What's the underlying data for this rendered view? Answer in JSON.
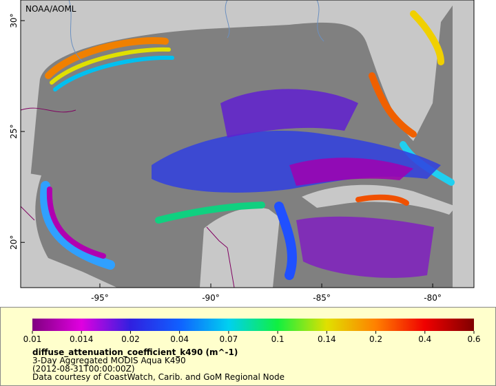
{
  "header": {
    "title": "NOAA/AOML"
  },
  "map": {
    "lon_range": [
      -98.57,
      -78.14
    ],
    "lat_range": [
      17.96,
      30.93
    ],
    "lon_ticks": [
      {
        "value": -95,
        "label": "-95°"
      },
      {
        "value": -90,
        "label": "-90°"
      },
      {
        "value": -85,
        "label": "-85°"
      },
      {
        "value": -80,
        "label": "-80°"
      }
    ],
    "lat_ticks": [
      {
        "value": 20,
        "label": "20°"
      },
      {
        "value": 25,
        "label": "25°"
      },
      {
        "value": 30,
        "label": "30°"
      }
    ]
  },
  "legend": {
    "ticks": [
      0.01,
      0.014,
      0.02,
      0.04,
      0.07,
      0.1,
      0.14,
      0.2,
      0.4,
      0.6
    ],
    "colors": [
      "#800080",
      "#e000e0",
      "#3020e0",
      "#1060ff",
      "#00d0f0",
      "#10f040",
      "#e0e000",
      "#ff8000",
      "#f00000",
      "#800000"
    ],
    "variable": "diffuse_attenuation_coefficient_k490 (m^-1)",
    "lines": [
      "3-Day Aggregated MODIS Aqua K490",
      "(2012-08-31T00:00:00Z)",
      "Data courtesy of CoastWatch, Carib. and GoM Regional Node"
    ]
  }
}
